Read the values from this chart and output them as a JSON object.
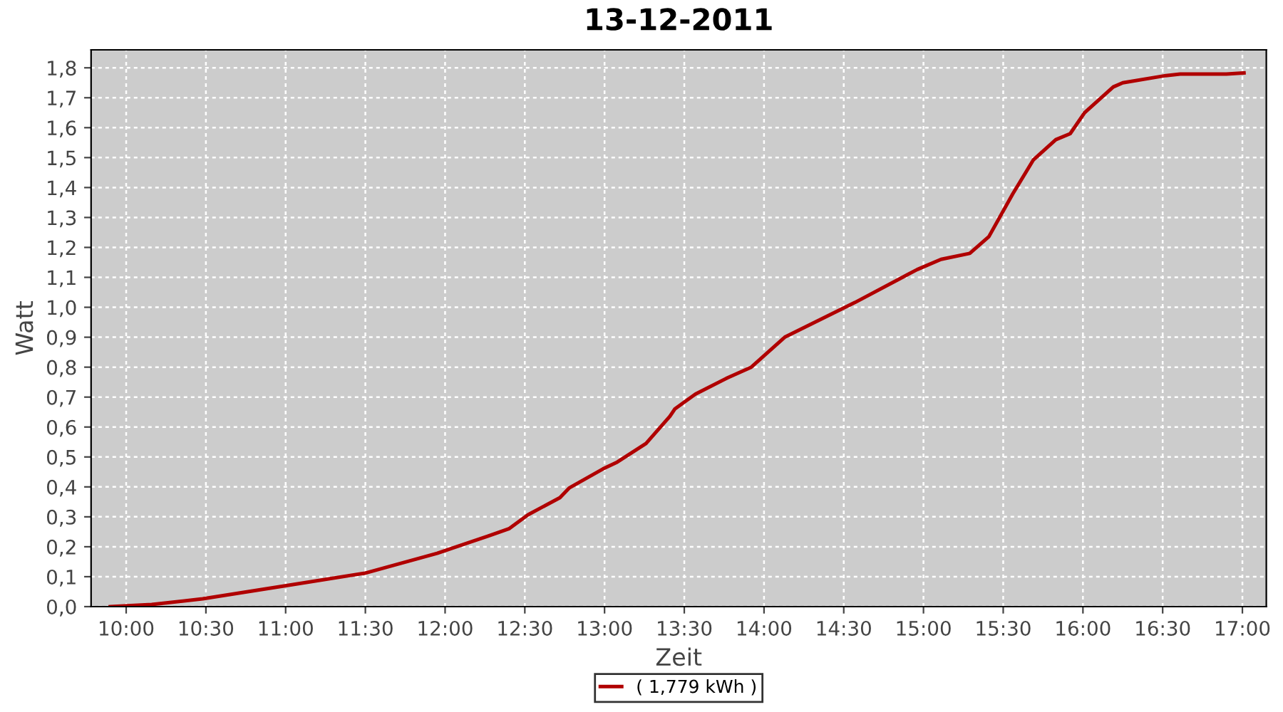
{
  "chart_data": {
    "type": "line",
    "title": "13-12-2011",
    "xlabel": "Zeit",
    "ylabel": "Watt",
    "xlim": [
      9.78,
      17.15
    ],
    "ylim": [
      0,
      1.86
    ],
    "xticks": [
      {
        "value": 10,
        "label": "10:00"
      },
      {
        "value": 10.5,
        "label": "10:30"
      },
      {
        "value": 11,
        "label": "11:00"
      },
      {
        "value": 11.5,
        "label": "11:30"
      },
      {
        "value": 12,
        "label": "12:00"
      },
      {
        "value": 12.5,
        "label": "12:30"
      },
      {
        "value": 13,
        "label": "13:00"
      },
      {
        "value": 13.5,
        "label": "13:30"
      },
      {
        "value": 14,
        "label": "14:00"
      },
      {
        "value": 14.5,
        "label": "14:30"
      },
      {
        "value": 15,
        "label": "15:00"
      },
      {
        "value": 15.5,
        "label": "15:30"
      },
      {
        "value": 16,
        "label": "16:00"
      },
      {
        "value": 16.5,
        "label": "16:30"
      },
      {
        "value": 17,
        "label": "17:00"
      }
    ],
    "yticks": [
      {
        "value": 0,
        "label": "0,0"
      },
      {
        "value": 0.1,
        "label": "0,1"
      },
      {
        "value": 0.2,
        "label": "0,2"
      },
      {
        "value": 0.3,
        "label": "0,3"
      },
      {
        "value": 0.4,
        "label": "0,4"
      },
      {
        "value": 0.5,
        "label": "0,5"
      },
      {
        "value": 0.6,
        "label": "0,6"
      },
      {
        "value": 0.7,
        "label": "0,7"
      },
      {
        "value": 0.8,
        "label": "0,8"
      },
      {
        "value": 0.9,
        "label": "0,9"
      },
      {
        "value": 1.0,
        "label": "1,0"
      },
      {
        "value": 1.1,
        "label": "1,1"
      },
      {
        "value": 1.2,
        "label": "1,2"
      },
      {
        "value": 1.3,
        "label": "1,3"
      },
      {
        "value": 1.4,
        "label": "1,4"
      },
      {
        "value": 1.5,
        "label": "1,5"
      },
      {
        "value": 1.6,
        "label": "1,6"
      },
      {
        "value": 1.7,
        "label": "1,7"
      },
      {
        "value": 1.8,
        "label": "1,8"
      }
    ],
    "grid": true,
    "legend": "bottom",
    "marker": "none",
    "line_style": "solid",
    "series": [
      {
        "name": "( 1,779 kWh )",
        "color": "#b00000",
        "x": [
          9.9,
          10.16,
          10.48,
          10.99,
          11.5,
          11.95,
          12.27,
          12.4,
          12.52,
          12.72,
          12.78,
          12.99,
          13.08,
          13.26,
          13.41,
          13.44,
          13.5,
          13.57,
          13.77,
          13.92,
          14.13,
          14.57,
          14.96,
          15.11,
          15.29,
          15.41,
          15.56,
          15.69,
          15.83,
          15.92,
          16.01,
          16.19,
          16.25,
          16.52,
          16.61,
          16.9,
          17.01
        ],
        "values": [
          0,
          0.007,
          0.026,
          0.069,
          0.112,
          0.178,
          0.236,
          0.26,
          0.307,
          0.364,
          0.397,
          0.46,
          0.483,
          0.545,
          0.636,
          0.66,
          0.683,
          0.71,
          0.764,
          0.8,
          0.9,
          1.016,
          1.126,
          1.16,
          1.18,
          1.236,
          1.379,
          1.493,
          1.56,
          1.58,
          1.65,
          1.736,
          1.75,
          1.774,
          1.779,
          1.779,
          1.783
        ]
      }
    ]
  }
}
